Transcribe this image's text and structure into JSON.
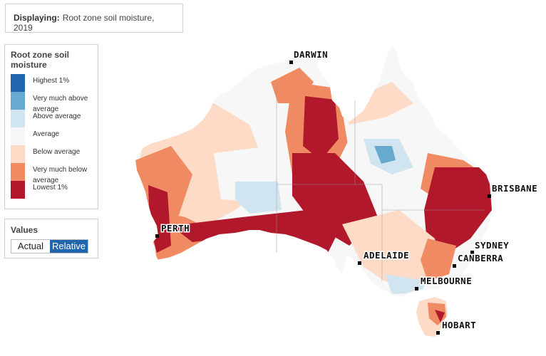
{
  "displaying": {
    "label": "Displaying:",
    "value": "Root zone soil moisture, 2019"
  },
  "legend": {
    "title": "Root zone soil moisture",
    "items": [
      {
        "label": "Highest 1%",
        "color": "#2166ac"
      },
      {
        "label": "Very much above average",
        "color": "#67a9cf"
      },
      {
        "label": "Above average",
        "color": "#d1e5f0"
      },
      {
        "label": "Average",
        "color": "#f7f7f7"
      },
      {
        "label": "Below average",
        "color": "#fddbc7"
      },
      {
        "label": "Very much below average",
        "color": "#ef8a62"
      },
      {
        "label": "Lowest 1%",
        "color": "#b2182b"
      }
    ]
  },
  "values": {
    "title": "Values",
    "actual_label": "Actual",
    "relative_label": "Relative",
    "selected": "Relative"
  },
  "map": {
    "cities": [
      {
        "name": "DARWIN"
      },
      {
        "name": "BRISBANE"
      },
      {
        "name": "PERTH"
      },
      {
        "name": "SYDNEY"
      },
      {
        "name": "ADELAIDE"
      },
      {
        "name": "CANBERRA"
      },
      {
        "name": "MELBOURNE"
      },
      {
        "name": "HOBART"
      }
    ]
  }
}
